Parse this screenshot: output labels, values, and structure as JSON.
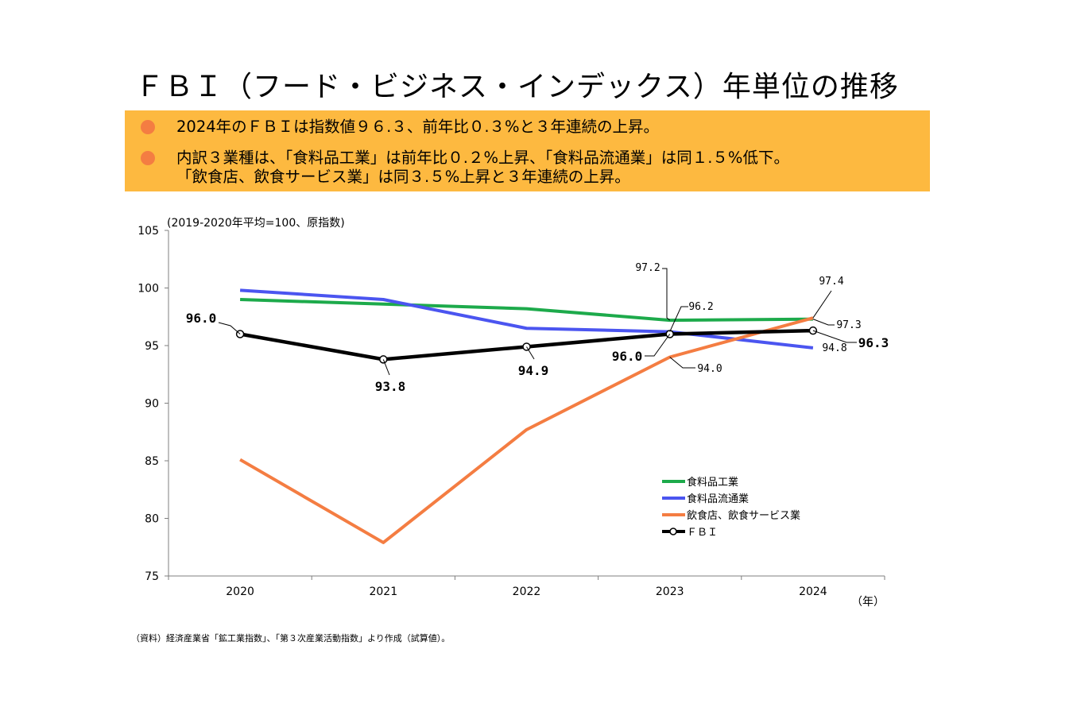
{
  "title": "ＦＢＩ（フード・ビジネス・インデックス）年単位の推移",
  "summary": {
    "bullets": [
      {
        "lines": [
          "2024年のＦＢＩは指数値９６.３、前年比０.３%と３年連続の上昇。"
        ]
      },
      {
        "lines": [
          "内訳３業種は、「食料品工業」は前年比０.２%上昇、「食料品流通業」は同１.５%低下。",
          "「飲食店、飲食サービス業」は同３.５%上昇と３年連続の上昇。"
        ]
      }
    ]
  },
  "source_note": "（資料）経済産業省「鉱工業指数」、「第３次産業活動指数」より作成（試算値）。",
  "colors": {
    "summary_bg": "#FDB940",
    "bullet": "#F47D42",
    "food_industry": "#1DAA4B",
    "food_distribution": "#4B55F0",
    "restaurant": "#F47D42",
    "fbi": "#000000"
  },
  "chart_data": {
    "type": "line",
    "unit_note": "(2019-2020年平均=100、原指数)",
    "x_unit": "（年）",
    "categories": [
      "2020",
      "2021",
      "2022",
      "2023",
      "2024"
    ],
    "y_ticks": [
      "105",
      "100",
      "95",
      "90",
      "85",
      "80",
      "75"
    ],
    "ylim": [
      75,
      105
    ],
    "series": [
      {
        "key": "food_industry",
        "name": "食料品工業",
        "values": [
          99.0,
          98.6,
          98.2,
          97.2,
          97.3
        ],
        "markers": false
      },
      {
        "key": "food_distribution",
        "name": "食料品流通業",
        "values": [
          99.8,
          99.0,
          96.5,
          96.2,
          94.8
        ],
        "markers": false
      },
      {
        "key": "restaurant",
        "name": "飲食店、飲食サービス業",
        "values": [
          85.1,
          77.9,
          87.7,
          94.0,
          97.4
        ],
        "markers": false
      },
      {
        "key": "fbi",
        "name": "ＦＢＩ",
        "values": [
          96.0,
          93.8,
          94.9,
          96.0,
          96.3
        ],
        "markers": true
      }
    ],
    "annotations": [
      {
        "id": "fbi-2020",
        "text": "96.0",
        "bold": true
      },
      {
        "id": "fbi-2021",
        "text": "93.8",
        "bold": true
      },
      {
        "id": "fbi-2022",
        "text": "94.9",
        "bold": true
      },
      {
        "id": "fbi-2023",
        "text": "96.0",
        "bold": true
      },
      {
        "id": "fbi-2024",
        "text": "96.3",
        "bold": true
      },
      {
        "id": "food-industry-2023",
        "text": "97.2",
        "bold": false
      },
      {
        "id": "distribution-2023",
        "text": "96.2",
        "bold": false
      },
      {
        "id": "restaurant-2023",
        "text": "94.0",
        "bold": false
      },
      {
        "id": "restaurant-2024",
        "text": "97.4",
        "bold": false
      },
      {
        "id": "food-industry-2024",
        "text": "97.3",
        "bold": false
      },
      {
        "id": "distribution-2024",
        "text": "94.8",
        "bold": false
      }
    ]
  }
}
